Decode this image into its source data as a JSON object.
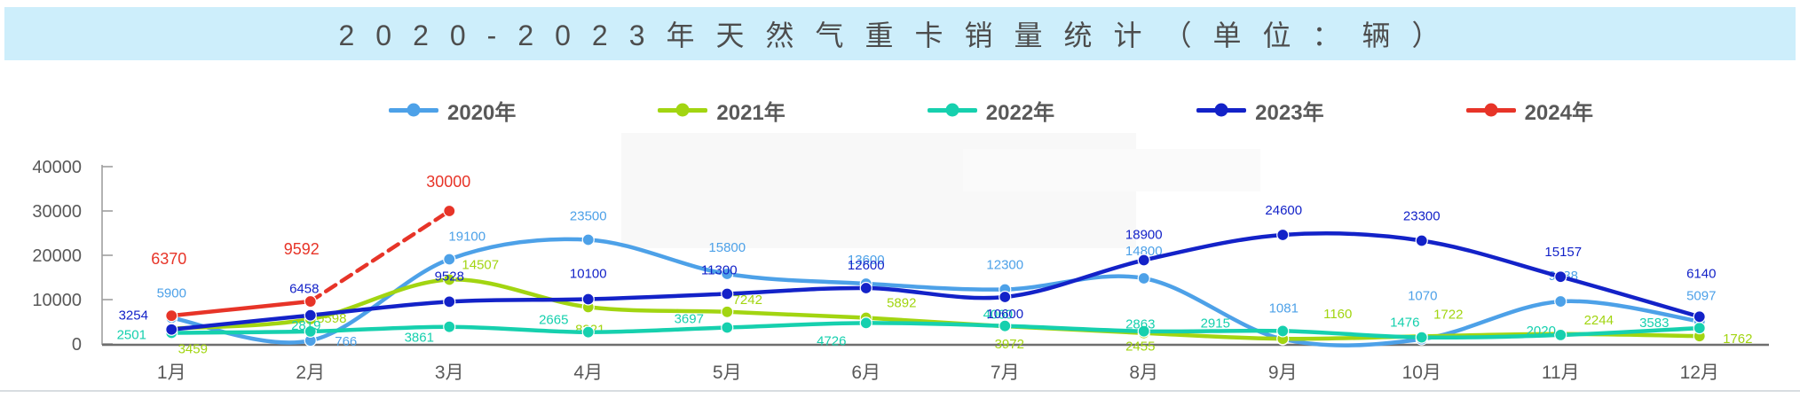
{
  "title": {
    "text": "2020-2023年天然气重卡销量统计（单位：辆）"
  },
  "legend": [
    {
      "label": "2020年",
      "color": "#4da1e8"
    },
    {
      "label": "2021年",
      "color": "#a2d511"
    },
    {
      "label": "2022年",
      "color": "#16d0ae"
    },
    {
      "label": "2023年",
      "color": "#1322c8"
    },
    {
      "label": "2024年",
      "color": "#e73428"
    }
  ],
  "chart_data": {
    "type": "line",
    "title": "2020-2023年天然气重卡销量统计（单位：辆）",
    "categories": [
      "1月",
      "2月",
      "3月",
      "4月",
      "5月",
      "6月",
      "7月",
      "8月",
      "9月",
      "10月",
      "11月",
      "12月"
    ],
    "series": [
      {
        "name": "2020年",
        "color": "#4da1e8",
        "values": [
          5900,
          766,
          19100,
          23500,
          15800,
          13600,
          12300,
          14800,
          1081,
          1070,
          9588,
          5097
        ]
      },
      {
        "name": "2021年",
        "color": "#a2d511",
        "values": [
          3459,
          5598,
          14507,
          8321,
          7242,
          5892,
          3972,
          2455,
          1160,
          1722,
          2244,
          1762
        ]
      },
      {
        "name": "2022年",
        "color": "#16d0ae",
        "values": [
          2501,
          2819,
          3861,
          2665,
          3697,
          4726,
          4060,
          2863,
          2915,
          1476,
          2020,
          3583
        ]
      },
      {
        "name": "2023年",
        "color": "#1322c8",
        "values": [
          3254,
          6458,
          9528,
          10100,
          11300,
          12600,
          10600,
          18900,
          24600,
          23300,
          15157,
          6140
        ]
      },
      {
        "name": "2024年",
        "color": "#e73428",
        "values": [
          6370,
          9592,
          30000
        ],
        "dashed_from": 1
      }
    ],
    "y_ticks": [
      "0",
      "10000",
      "20000",
      "30000",
      "40000"
    ],
    "ylim": [
      0,
      40000
    ],
    "grid": false,
    "legend_position": "top",
    "smooth": true
  }
}
